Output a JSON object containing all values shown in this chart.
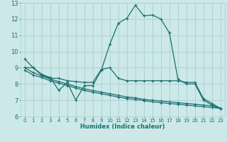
{
  "background_color": "#cce8e8",
  "grid_color": "#aad0d0",
  "line_color": "#1a7070",
  "xlabel": "Humidex (Indice chaleur)",
  "xlim": [
    -0.5,
    23.5
  ],
  "ylim": [
    6,
    13
  ],
  "xtick_labels": [
    "0",
    "1",
    "2",
    "3",
    "4",
    "5",
    "6",
    "7",
    "8",
    "9",
    "10",
    "11",
    "12",
    "13",
    "14",
    "15",
    "16",
    "17",
    "18",
    "19",
    "20",
    "21",
    "22",
    "23"
  ],
  "xtick_vals": [
    0,
    1,
    2,
    3,
    4,
    5,
    6,
    7,
    8,
    9,
    10,
    11,
    12,
    13,
    14,
    15,
    16,
    17,
    18,
    19,
    20,
    21,
    22,
    23
  ],
  "ytick_vals": [
    6,
    7,
    8,
    9,
    10,
    11,
    12,
    13
  ],
  "line1_x": [
    0,
    1,
    2,
    3,
    4,
    5,
    6,
    7,
    8,
    9,
    10,
    11,
    12,
    13,
    14,
    15,
    16,
    17,
    18,
    19,
    20,
    21,
    22,
    23
  ],
  "line1_y": [
    9.55,
    9.0,
    8.6,
    8.4,
    7.6,
    8.1,
    7.0,
    7.9,
    7.9,
    8.85,
    10.45,
    11.75,
    12.05,
    12.85,
    12.2,
    12.25,
    12.0,
    11.15,
    8.3,
    8.0,
    8.0,
    7.0,
    6.7,
    6.5
  ],
  "line2_x": [
    0,
    1,
    2,
    3,
    4,
    5,
    6,
    7,
    8,
    9,
    10,
    11,
    12,
    13,
    14,
    15,
    16,
    17,
    18,
    19,
    20,
    21,
    22,
    23
  ],
  "line2_y": [
    9.0,
    9.0,
    8.55,
    8.35,
    8.35,
    8.2,
    8.15,
    8.1,
    8.1,
    8.9,
    9.0,
    8.35,
    8.2,
    8.2,
    8.2,
    8.2,
    8.2,
    8.2,
    8.2,
    8.1,
    8.1,
    7.1,
    6.8,
    6.5
  ],
  "line3_x": [
    0,
    1,
    2,
    3,
    4,
    5,
    6,
    7,
    8,
    9,
    10,
    11,
    12,
    13,
    14,
    15,
    16,
    17,
    18,
    19,
    20,
    21,
    22,
    23
  ],
  "line3_y": [
    9.0,
    8.7,
    8.5,
    8.3,
    8.15,
    8.0,
    7.85,
    7.7,
    7.6,
    7.5,
    7.4,
    7.3,
    7.2,
    7.15,
    7.05,
    7.0,
    6.95,
    6.9,
    6.85,
    6.8,
    6.75,
    6.7,
    6.65,
    6.5
  ],
  "line4_x": [
    0,
    1,
    2,
    3,
    4,
    5,
    6,
    7,
    8,
    9,
    10,
    11,
    12,
    13,
    14,
    15,
    16,
    17,
    18,
    19,
    20,
    21,
    22,
    23
  ],
  "line4_y": [
    8.85,
    8.55,
    8.4,
    8.2,
    8.05,
    7.9,
    7.75,
    7.6,
    7.5,
    7.4,
    7.3,
    7.2,
    7.1,
    7.05,
    6.98,
    6.9,
    6.85,
    6.8,
    6.75,
    6.7,
    6.65,
    6.6,
    6.55,
    6.5
  ]
}
